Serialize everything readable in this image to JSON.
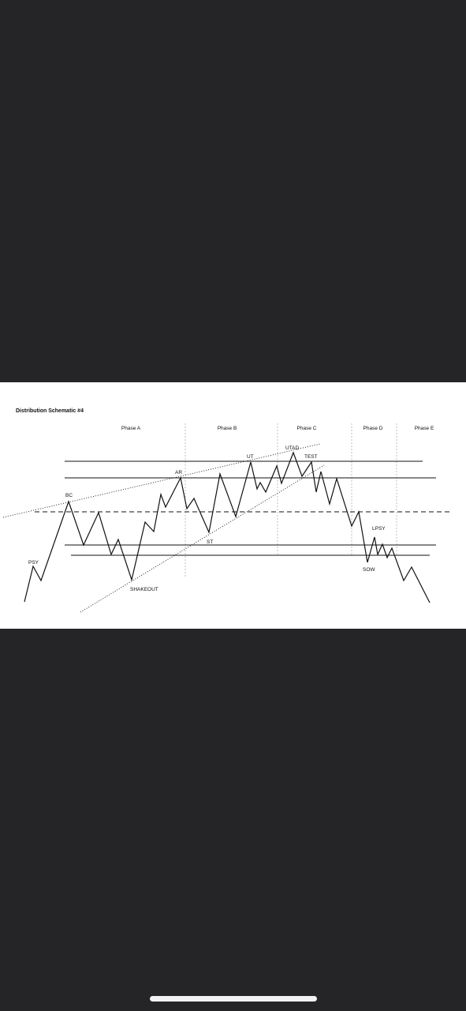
{
  "diagram": {
    "title": "Distribution Schematic #4",
    "phases": [
      "Phase A",
      "Phase B",
      "Phase C",
      "Phase D",
      "Phase E"
    ],
    "events": {
      "psy": "PSY",
      "bc": "BC",
      "ar": "AR",
      "shakeout": "SHAKEOUT",
      "st": "ST",
      "ut": "UT",
      "utad": "UTAD",
      "test": "TEST",
      "lpsy": "LPSY",
      "sow": "SOW"
    }
  },
  "colors": {
    "background": "#252527",
    "panel": "#ffffff",
    "ink": "#111111",
    "divider": "#b0b0b0"
  }
}
